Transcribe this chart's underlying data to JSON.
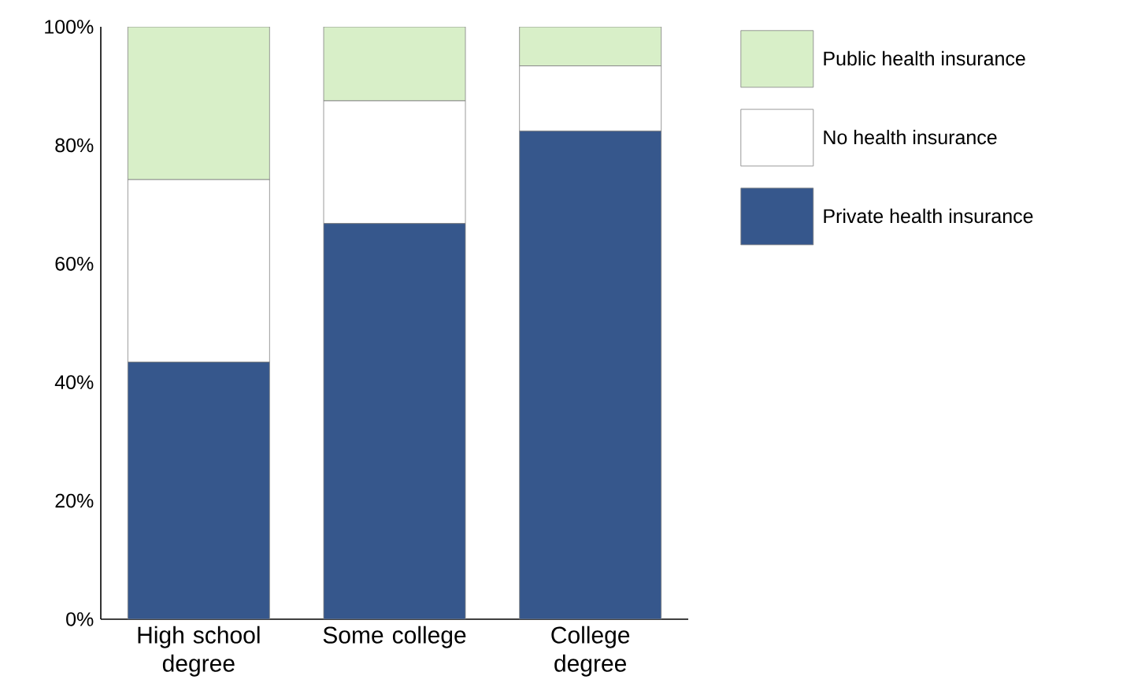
{
  "chart_data": {
    "type": "bar",
    "stacked": true,
    "categories": [
      "High school degree",
      "Some college",
      "College degree"
    ],
    "series": [
      {
        "name": "Private health insurance",
        "color": "#36578c",
        "values": [
          43.4,
          66.8,
          82.4
        ]
      },
      {
        "name": "No health insurance",
        "color": "#ffffff",
        "values": [
          30.8,
          20.7,
          11.0
        ]
      },
      {
        "name": "Public health insurance",
        "color": "#d8efc8",
        "values": [
          25.8,
          12.5,
          6.6
        ]
      }
    ],
    "ylim": [
      0,
      100
    ],
    "yticks": [
      {
        "value": 0,
        "label": "0%"
      },
      {
        "value": 20,
        "label": "20%"
      },
      {
        "value": 40,
        "label": "40%"
      },
      {
        "value": 60,
        "label": "60%"
      },
      {
        "value": 80,
        "label": "80%"
      },
      {
        "value": 100,
        "label": "100%"
      }
    ],
    "grid": false,
    "legend": "top right"
  }
}
